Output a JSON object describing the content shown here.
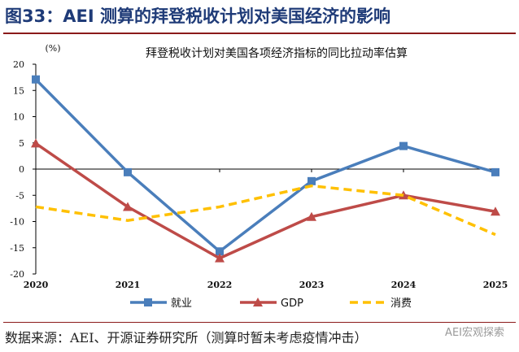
{
  "figure_title": "图33：AEI 测算的拜登税收计划对美国经济的影响",
  "source": "数据来源：AEI、开源证券研究所（测算时暂未考虑疫情冲击）",
  "watermark": "AEI宏观探索",
  "chart_data": {
    "type": "line",
    "title": "拜登税收计划对美国各项经济指标的同比拉动率估算",
    "ylabel": "(%)",
    "categories": [
      "2020",
      "2021",
      "2022",
      "2023",
      "2024",
      "2025"
    ],
    "ylim": [
      -20,
      20
    ],
    "yticks": [
      20,
      15,
      10,
      5,
      0,
      -5,
      -10,
      -15,
      -20
    ],
    "grid": false,
    "legend_position": "bottom",
    "series": [
      {
        "name": "就业",
        "values": [
          17.1,
          -0.6,
          -15.7,
          -2.3,
          4.4,
          -0.6
        ],
        "color": "#4a7ebb",
        "marker": "square",
        "dash": false
      },
      {
        "name": "GDP",
        "values": [
          4.9,
          -7.2,
          -17.0,
          -9.1,
          -5.0,
          -8.1
        ],
        "color": "#be4b48",
        "marker": "triangle",
        "dash": false
      },
      {
        "name": "消费",
        "values": [
          -7.2,
          -9.8,
          -7.2,
          -3.2,
          -5.0,
          -12.5
        ],
        "color": "#ffc000",
        "marker": "none",
        "dash": true
      }
    ]
  }
}
